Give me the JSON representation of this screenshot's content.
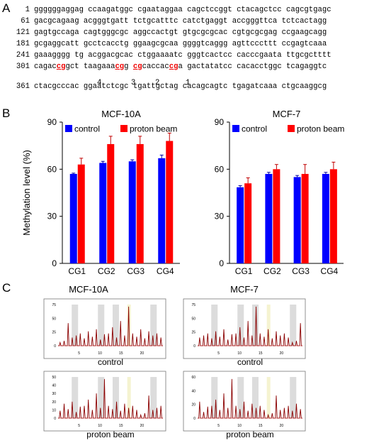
{
  "panels": {
    "a": "A",
    "b": "B",
    "c": "C"
  },
  "sequence": {
    "lines": [
      {
        "num": "1",
        "parts": [
          {
            "t": "ggggggaggag ccaagatggc cgaataggaa cagctccggt ctacagctcc cagcgtgagc"
          }
        ]
      },
      {
        "num": "61",
        "parts": [
          {
            "t": "gacgcagaag acgggtgatt tctgcatttc catctgaggt accgggttca tctcactagg"
          }
        ]
      },
      {
        "num": "121",
        "parts": [
          {
            "t": "gagtgccaga cagtgggcgc aggccactgt gtgcgcgcac cgtgcgcgag ccgaagcagg"
          }
        ]
      },
      {
        "num": "181",
        "parts": [
          {
            "t": "gcgaggcatt gcctcacctg ggaagcgcaa ggggtcaggg agttcccttt ccgagtcaaa"
          }
        ]
      },
      {
        "num": "241",
        "parts": [
          {
            "t": "gaaagggg tg acggacgcac ctggaaaatc gggtcactcc cacccgaata ttgcgctttt"
          }
        ]
      },
      {
        "num": "301",
        "parts": [
          {
            "t": "cagac"
          },
          {
            "t": "cg",
            "cg": true
          },
          {
            "t": "gct taagaaa"
          },
          {
            "t": "cg",
            "cg": true
          },
          {
            "t": "g "
          },
          {
            "t": "cg",
            "cg": true
          },
          {
            "t": "caccac"
          },
          {
            "t": "cg",
            "cg": true
          },
          {
            "t": "a gactatatcc cacacctggc tcagaggtc"
          }
        ]
      },
      {
        "num": "361",
        "parts": [
          {
            "t": "ctacgcccac ggaatctcgc tgattgctag cacagcagtc tgagatcaaa ctgcaaggcg"
          }
        ]
      }
    ],
    "site_labels": [
      "4",
      "3",
      "2",
      "1"
    ]
  },
  "chart_data": [
    {
      "type": "bar",
      "title": "MCF-10A",
      "categories": [
        "CG1",
        "CG2",
        "CG3",
        "CG4"
      ],
      "series": [
        {
          "name": "control",
          "values": [
            57,
            64,
            65,
            67
          ],
          "errors": [
            0.5,
            1,
            1,
            2
          ],
          "color": "#0000ff"
        },
        {
          "name": "proton beam",
          "values": [
            63,
            76,
            76,
            78
          ],
          "errors": [
            4,
            5,
            5,
            5
          ],
          "color": "#ff0000"
        }
      ],
      "ylabel": "Methylation level (%)",
      "ylim": [
        0,
        90
      ],
      "yticks": [
        0,
        30,
        60,
        90
      ],
      "legend": "top"
    },
    {
      "type": "bar",
      "title": "MCF-7",
      "categories": [
        "CG1",
        "CG2",
        "CG3",
        "CG4"
      ],
      "series": [
        {
          "name": "control",
          "values": [
            48.5,
            57,
            55,
            57
          ],
          "errors": [
            1,
            1,
            1,
            1
          ],
          "color": "#0000ff"
        },
        {
          "name": "proton beam",
          "values": [
            51,
            60,
            57,
            60
          ],
          "errors": [
            3.5,
            3,
            6,
            4.5
          ],
          "color": "#ff0000"
        }
      ],
      "ylabel": "",
      "ylim": [
        0,
        90
      ],
      "yticks": [
        0,
        30,
        60,
        90
      ],
      "legend": "top"
    }
  ],
  "panel_c": {
    "col_titles": [
      "MCF-10A",
      "MCF-7"
    ],
    "traces": [
      {
        "caption": "control",
        "yticks": [
          "0",
          "25",
          "50",
          "75"
        ]
      },
      {
        "caption": "control",
        "yticks": [
          "0",
          "25",
          "50",
          "75"
        ]
      },
      {
        "caption": "proton beam",
        "yticks": [
          "0",
          "10",
          "20",
          "30",
          "40",
          "50"
        ]
      },
      {
        "caption": "proton beam",
        "yticks": [
          "0",
          "20",
          "40",
          "60"
        ]
      }
    ],
    "xticks": [
      "5",
      "10",
      "15",
      "20"
    ],
    "trace_color": "#8b0000"
  }
}
